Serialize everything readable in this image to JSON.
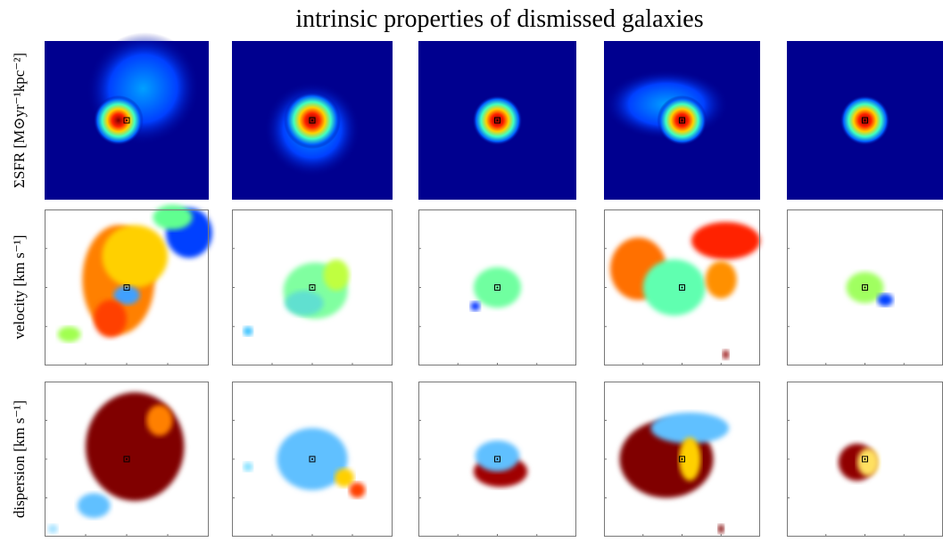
{
  "figure": {
    "title": "intrinsic properties of dismissed galaxies",
    "row_labels": [
      "ΣSFR [M⊙yr⁻¹kpc⁻²]",
      "velocity [km s⁻¹]",
      "dispersion [km s⁻¹]"
    ]
  }
}
